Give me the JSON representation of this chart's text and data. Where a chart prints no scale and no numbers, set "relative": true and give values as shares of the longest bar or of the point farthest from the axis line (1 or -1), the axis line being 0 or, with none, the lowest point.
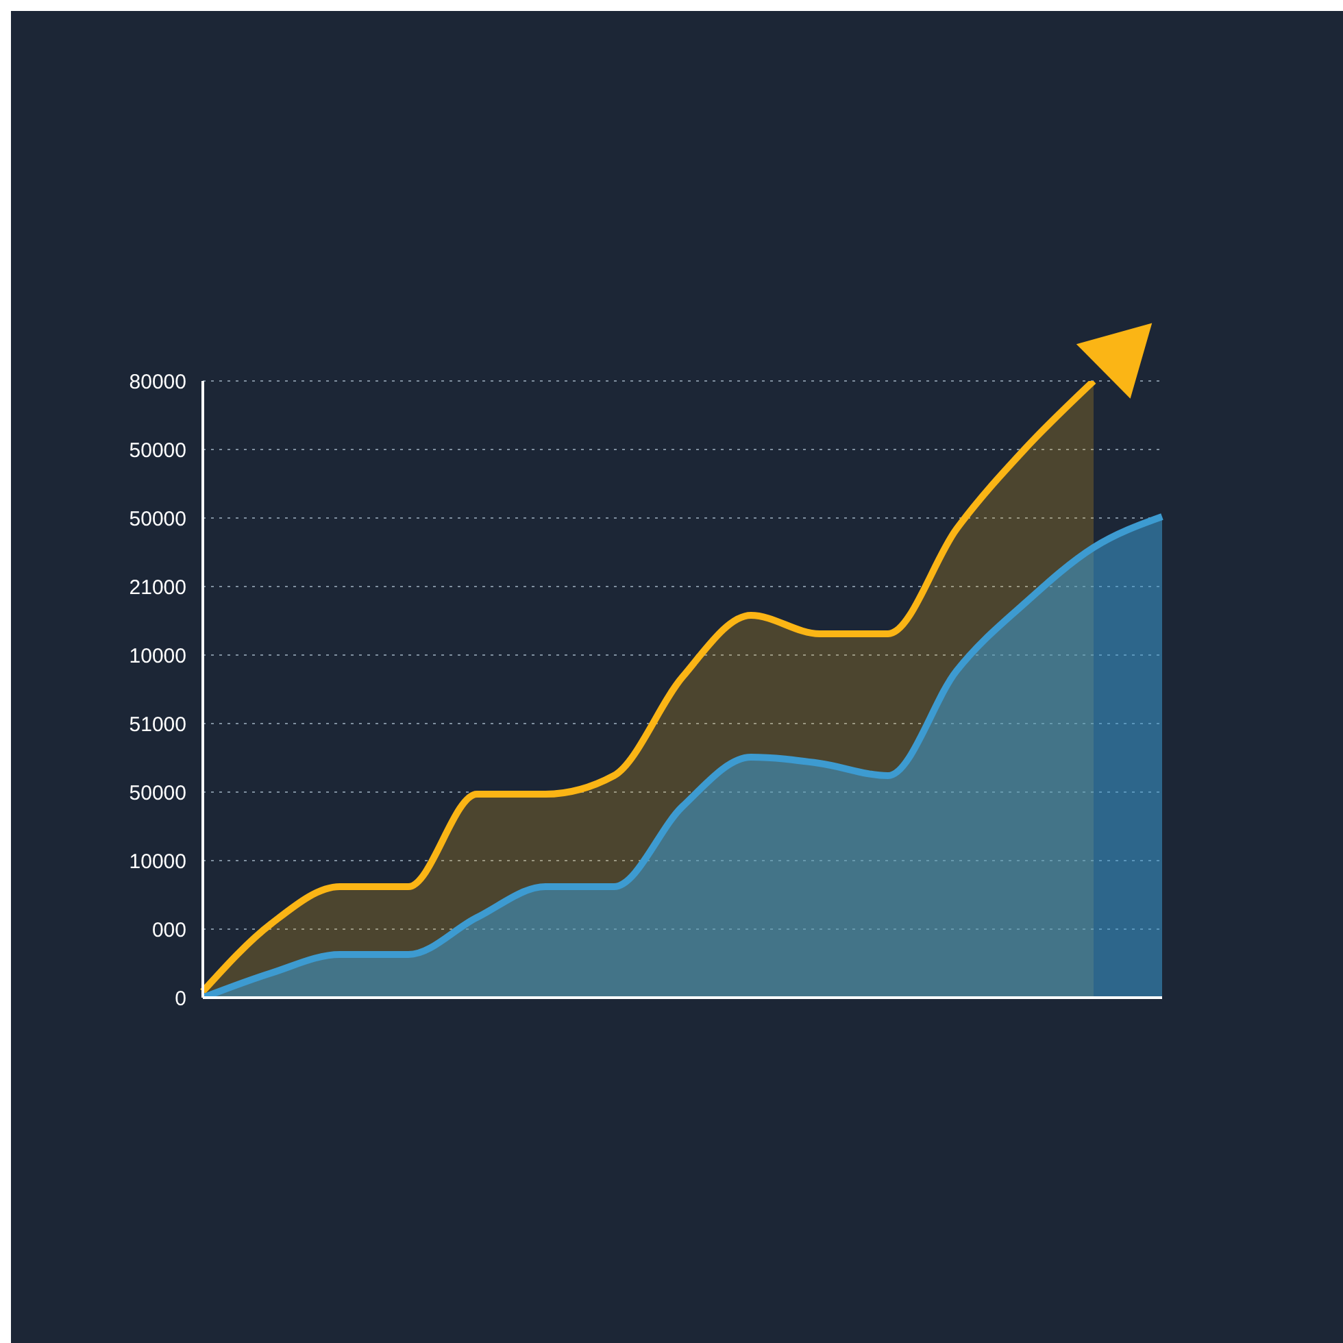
{
  "chart_data": {
    "type": "area",
    "relative": true,
    "categories": [
      null,
      null,
      null,
      null,
      null,
      null,
      null,
      null,
      null,
      null,
      null,
      null,
      null,
      null,
      null
    ],
    "series": [
      {
        "color": "#fbb515",
        "values": [
          0.01,
          0.12,
          0.18,
          0.18,
          0.33,
          0.33,
          0.36,
          0.52,
          0.62,
          0.59,
          0.59,
          0.76,
          0.89,
          1.0,
          null
        ]
      },
      {
        "color": "#3d9bd1",
        "values": [
          0,
          0.04,
          0.07,
          0.07,
          0.13,
          0.18,
          0.18,
          0.31,
          0.39,
          0.38,
          0.36,
          0.53,
          0.64,
          0.73,
          0.78
        ]
      }
    ],
    "annotations": [
      "0",
      "000",
      "10000",
      "50000",
      "51000",
      "10000",
      "21000",
      "50000",
      "50000",
      "80000"
    ],
    "grid": "y",
    "legend": false,
    "tick_labels": false
  }
}
